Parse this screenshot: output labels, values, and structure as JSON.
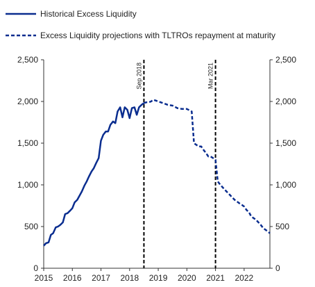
{
  "chart_data": {
    "type": "line",
    "title": "",
    "xlabel": "",
    "ylabel": "",
    "xlim": [
      2015.0,
      2022.9
    ],
    "ylim": [
      0,
      2500
    ],
    "y_ticks": [
      "0",
      "500",
      "1,000",
      "1,500",
      "2,000",
      "2,500"
    ],
    "x_ticks": [
      "2015",
      "2016",
      "2017",
      "2018",
      "2019",
      "2020",
      "2021",
      "2022"
    ],
    "grid": false,
    "legend_placement": "top-left",
    "colors": {
      "series": "#0a2d8f",
      "marker": "#000000"
    },
    "series": [
      {
        "name": "Historical Excess Liquidity",
        "style": "solid",
        "x": [
          2015.0,
          2015.08,
          2015.17,
          2015.25,
          2015.33,
          2015.42,
          2015.5,
          2015.58,
          2015.67,
          2015.75,
          2015.83,
          2015.92,
          2016.0,
          2016.08,
          2016.17,
          2016.25,
          2016.33,
          2016.42,
          2016.5,
          2016.58,
          2016.67,
          2016.75,
          2016.83,
          2016.92,
          2017.0,
          2017.08,
          2017.17,
          2017.25,
          2017.33,
          2017.42,
          2017.5,
          2017.58,
          2017.67,
          2017.75,
          2017.83,
          2017.92,
          2018.0,
          2018.08,
          2018.17,
          2018.25,
          2018.33,
          2018.42,
          2018.5
        ],
        "y": [
          270,
          300,
          310,
          400,
          420,
          490,
          500,
          520,
          550,
          650,
          660,
          690,
          720,
          790,
          820,
          870,
          920,
          990,
          1040,
          1100,
          1160,
          1200,
          1260,
          1320,
          1530,
          1600,
          1640,
          1640,
          1720,
          1760,
          1740,
          1880,
          1930,
          1810,
          1930,
          1900,
          1800,
          1920,
          1930,
          1840,
          1930,
          1960,
          1980
        ]
      },
      {
        "name": "Excess Liquidity projections with TLTROs repayment at maturity",
        "style": "dashed",
        "x": [
          2018.5,
          2018.58,
          2018.67,
          2018.75,
          2018.83,
          2018.92,
          2019.0,
          2019.17,
          2019.33,
          2019.5,
          2019.67,
          2019.83,
          2020.0,
          2020.17,
          2020.25,
          2020.33,
          2020.42,
          2020.5,
          2020.58,
          2020.67,
          2020.75,
          2020.83,
          2020.92,
          2021.0,
          2021.08,
          2021.17,
          2021.33,
          2021.5,
          2021.67,
          2021.75,
          2021.83,
          2021.92,
          2022.0,
          2022.08,
          2022.17,
          2022.25,
          2022.42,
          2022.58,
          2022.67,
          2022.75,
          2022.83,
          2022.9
        ],
        "y": [
          1980,
          1990,
          1990,
          2000,
          2020,
          2010,
          2000,
          1980,
          1960,
          1950,
          1920,
          1910,
          1910,
          1880,
          1500,
          1480,
          1460,
          1460,
          1420,
          1380,
          1340,
          1340,
          1320,
          1300,
          1040,
          1000,
          940,
          880,
          820,
          800,
          780,
          760,
          740,
          700,
          670,
          620,
          580,
          520,
          480,
          460,
          440,
          420
        ]
      }
    ],
    "markers": [
      {
        "x": 2018.5,
        "label": "Sep 2018"
      },
      {
        "x": 2021.0,
        "label": "Mar 2021"
      }
    ]
  }
}
